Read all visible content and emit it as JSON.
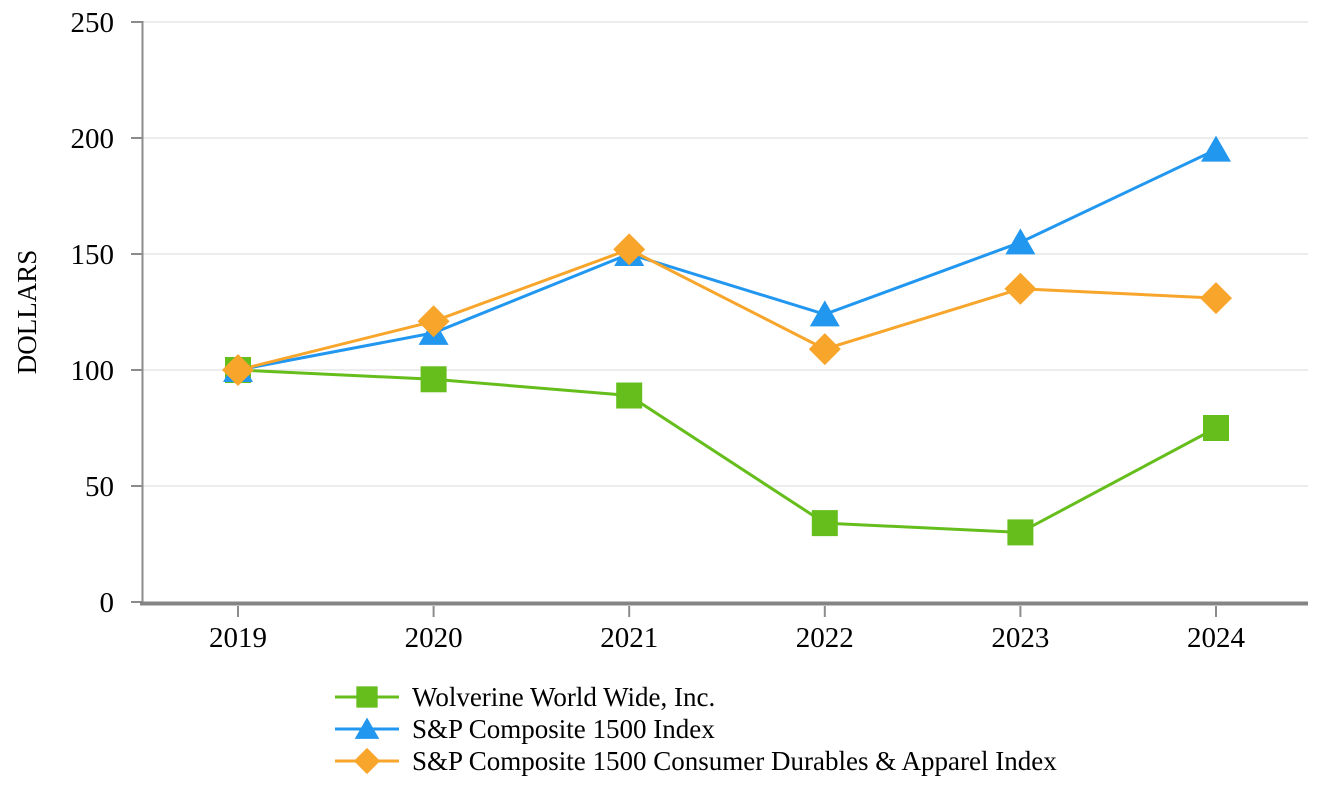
{
  "chart_data": {
    "type": "line",
    "title": "",
    "ylabel": "DOLLARS",
    "xlabel": "",
    "ylim": [
      0,
      250
    ],
    "yticks": [
      0,
      50,
      100,
      150,
      200,
      250
    ],
    "categories": [
      "2019",
      "2020",
      "2021",
      "2022",
      "2023",
      "2024"
    ],
    "grid": "horizontal",
    "legend_position": "bottom-left",
    "series": [
      {
        "name": "Wolverine World Wide, Inc.",
        "marker": "square",
        "color": "#65BE1C",
        "values": [
          100,
          96,
          89,
          34,
          30,
          75
        ]
      },
      {
        "name": "S&P Composite 1500 Index",
        "marker": "triangle",
        "color": "#2297F0",
        "values": [
          100,
          116,
          150,
          124,
          155,
          195
        ]
      },
      {
        "name": "S&P Composite 1500 Consumer Durables & Apparel Index",
        "marker": "diamond",
        "color": "#F8A52C",
        "values": [
          100,
          121,
          152,
          109,
          135,
          131
        ]
      }
    ],
    "colors": {
      "gridline": "#E7E7E7",
      "axis": "#8C8C8C",
      "x_axis_line": "#848484",
      "text": "#000000"
    }
  }
}
